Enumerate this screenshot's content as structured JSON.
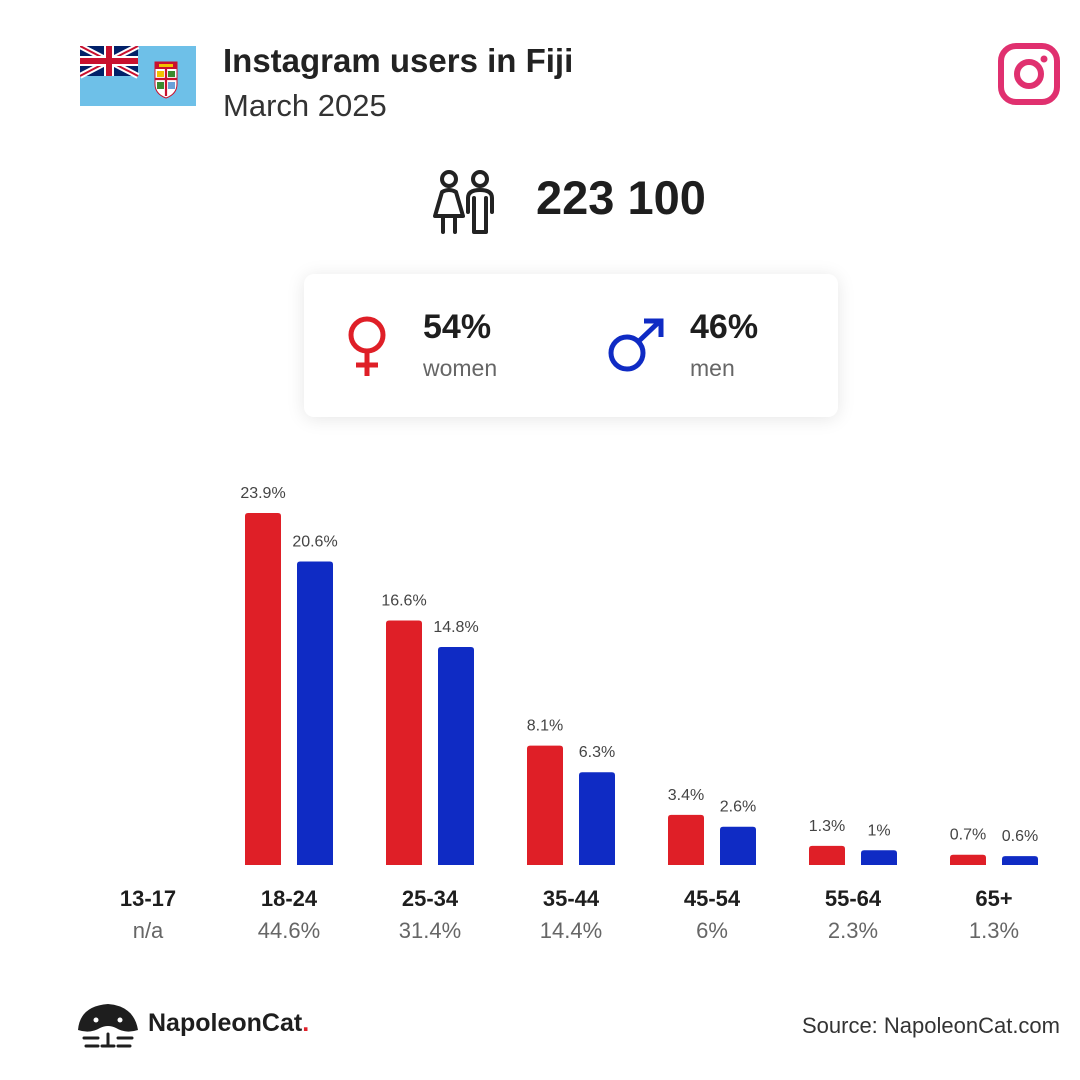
{
  "header": {
    "title": "Instagram users in Fiji",
    "subtitle": "March 2025"
  },
  "total_users": "223 100",
  "gender": {
    "women": {
      "pct": "54%",
      "label": "women"
    },
    "men": {
      "pct": "46%",
      "label": "men"
    }
  },
  "colors": {
    "women": "#df1f27",
    "men": "#0f2bc4",
    "instagram": "#e0306f"
  },
  "icons": {
    "flag": "fiji-flag-icon",
    "instagram": "instagram-icon",
    "people": "people-icon",
    "female": "female-symbol-icon",
    "male": "male-symbol-icon",
    "logo": "napoleoncat-logo-icon"
  },
  "chart_data": {
    "type": "bar",
    "categories": [
      "13-17",
      "18-24",
      "25-34",
      "35-44",
      "45-54",
      "55-64",
      "65+"
    ],
    "category_totals": [
      "n/a",
      "44.6%",
      "31.4%",
      "14.4%",
      "6%",
      "2.3%",
      "1.3%"
    ],
    "series": [
      {
        "values": [
          null,
          23.9,
          16.6,
          8.1,
          3.4,
          1.3,
          0.7
        ],
        "labels": [
          "",
          "23.9%",
          "16.6%",
          "8.1%",
          "3.4%",
          "1.3%",
          "0.7%"
        ]
      },
      {
        "values": [
          null,
          20.6,
          14.8,
          6.3,
          2.6,
          1.0,
          0.6
        ],
        "labels": [
          "",
          "20.6%",
          "14.8%",
          "6.3%",
          "2.6%",
          "1%",
          "0.6%"
        ]
      }
    ],
    "grid": false
  },
  "footer": {
    "brand": "NapoleonCat",
    "brand_dot": ".",
    "source": "Source: NapoleonCat.com"
  }
}
